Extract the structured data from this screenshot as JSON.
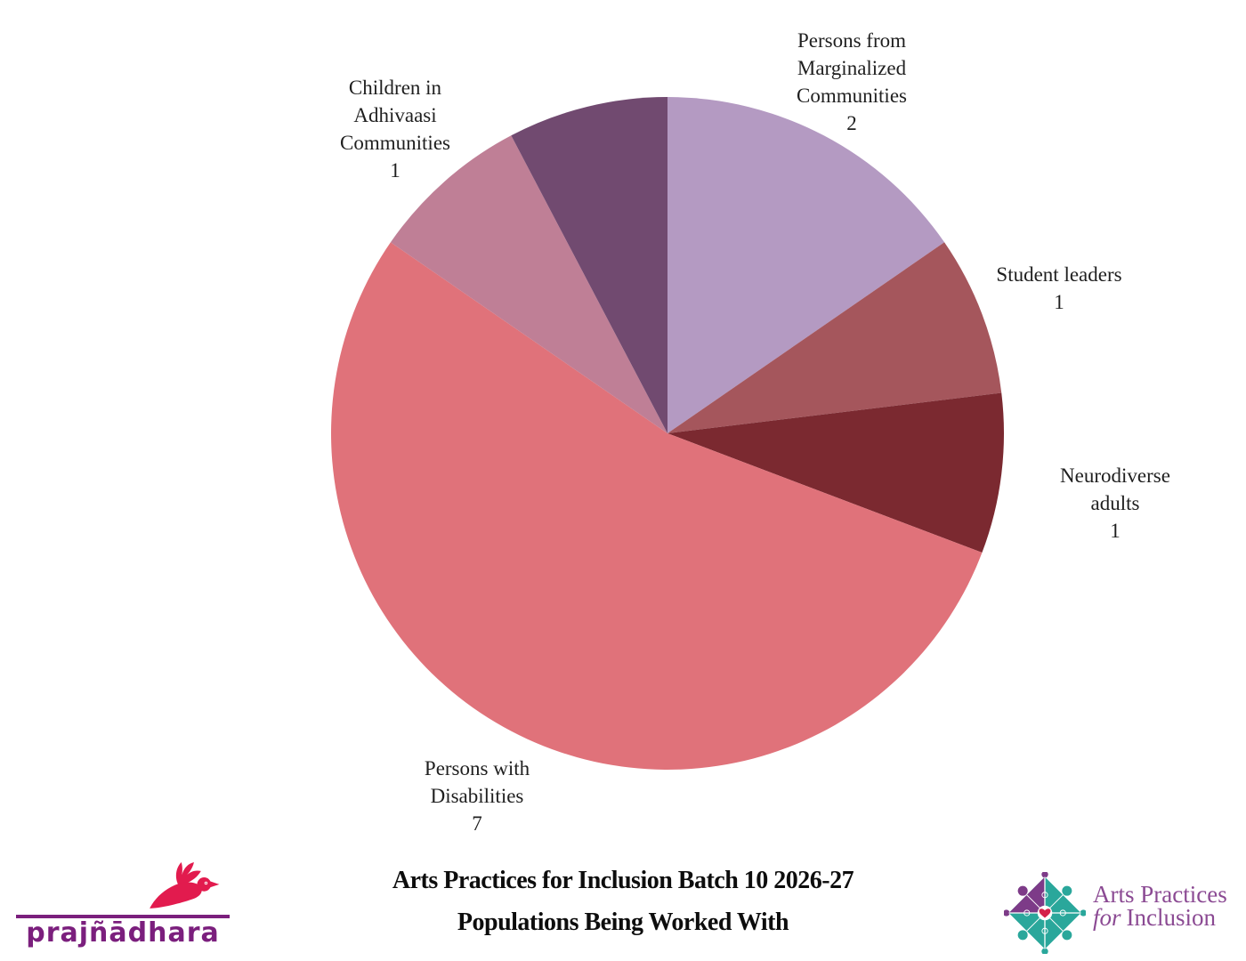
{
  "chart_data": {
    "type": "pie",
    "title": "Arts Practices for Inclusion Batch 10 2026-27",
    "subtitle": "Populations Being Worked With",
    "start_angle_deg": 0,
    "direction": "clockwise",
    "total": 13,
    "slices": [
      {
        "label": "Persons from Marginalized Communities",
        "value": 2,
        "color": "#b49ac2",
        "label_visible": true
      },
      {
        "label": "Student leaders",
        "value": 1,
        "color": "#a5565c",
        "label_visible": true
      },
      {
        "label": "Neurodiverse adults",
        "value": 1,
        "color": "#7b2930",
        "label_visible": true
      },
      {
        "label": "Persons with Disabilities",
        "value": 7,
        "color": "#e0727a",
        "label_visible": true
      },
      {
        "label": "Children in Adhivaasi Communities",
        "value": 1,
        "color": "#bf7f96",
        "label_visible": true
      },
      {
        "label": "",
        "value": 1,
        "color": "#714a70",
        "label_visible": false
      }
    ]
  },
  "callouts": {
    "marginalized": "Persons from\nMarginalized\nCommunities\n2",
    "student_leaders": "Student leaders\n1",
    "neurodiverse": "Neurodiverse adults\n1",
    "disabilities": "Persons with\nDisabilities\n7",
    "adhivaasi": "Children in\nAdhivaasi\nCommunities\n1"
  },
  "footer": {
    "title_line1": "Arts Practices for Inclusion Batch 10 2026-27",
    "title_line2": "Populations Being Worked With"
  },
  "logos": {
    "prajnadhara": {
      "wordmark": "prajñādhara",
      "wordmark_color": "#7b1f7d",
      "bird_color": "#e21b4e"
    },
    "apfi": {
      "line1": "Arts Practices",
      "line2_italic": "for",
      "line2_rest": "Inclusion",
      "text_color": "#8b4a93",
      "teal": "#2aa79b",
      "purple": "#7d3b88",
      "heart_color": "#d4224a"
    }
  }
}
